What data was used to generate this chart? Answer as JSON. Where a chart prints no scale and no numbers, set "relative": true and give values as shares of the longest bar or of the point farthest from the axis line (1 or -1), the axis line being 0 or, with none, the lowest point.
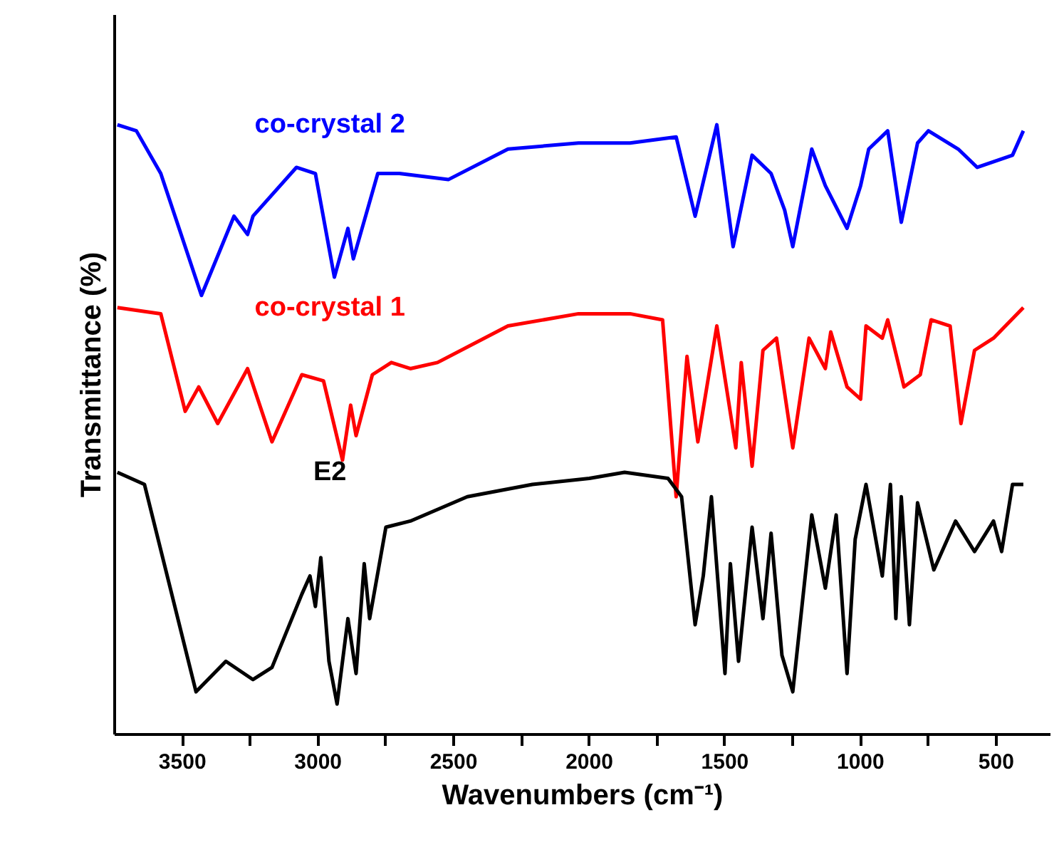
{
  "chart_data": {
    "type": "line",
    "relative": true,
    "xlabel": "Wavenumbers (cm⁻¹)",
    "ylabel": "Transmittance (%)",
    "xlim": [
      3750,
      300
    ],
    "xticks": [
      3500,
      {
        "value": 3250,
        "label": null
      },
      3000,
      {
        "value": 2750,
        "label": null
      },
      2500,
      {
        "value": 2250,
        "label": null
      },
      2000,
      {
        "value": 1750,
        "label": null
      },
      1500,
      {
        "value": 1250,
        "label": null
      },
      1000,
      {
        "value": 750,
        "label": null
      },
      500
    ],
    "grid": false,
    "marker": "none",
    "line_style": "solid",
    "tick_labels": "x",
    "series": [
      {
        "name": "co-crystal 2",
        "color": "#0000ff",
        "x": [
          3740,
          3670,
          3580,
          3430,
          3310,
          3260,
          3240,
          3080,
          3010,
          2940,
          2890,
          2870,
          2780,
          2700,
          2520,
          2300,
          2040,
          1850,
          1680,
          1610,
          1530,
          1470,
          1400,
          1330,
          1280,
          1250,
          1180,
          1130,
          1050,
          1000,
          970,
          900,
          850,
          790,
          750,
          640,
          570,
          440,
          400
        ],
        "values": [
          1.0,
          0.99,
          0.92,
          0.72,
          0.85,
          0.82,
          0.85,
          0.93,
          0.92,
          0.75,
          0.83,
          0.78,
          0.92,
          0.92,
          0.91,
          0.96,
          0.97,
          0.97,
          0.98,
          0.85,
          1.0,
          0.8,
          0.95,
          0.92,
          0.86,
          0.8,
          0.96,
          0.9,
          0.83,
          0.9,
          0.96,
          0.99,
          0.84,
          0.97,
          0.99,
          0.96,
          0.93,
          0.95,
          0.99
        ]
      },
      {
        "name": "co-crystal 1",
        "color": "#ff0000",
        "x": [
          3740,
          3580,
          3490,
          3440,
          3370,
          3260,
          3170,
          3060,
          2980,
          2910,
          2880,
          2860,
          2800,
          2730,
          2660,
          2560,
          2300,
          2040,
          1850,
          1730,
          1680,
          1640,
          1600,
          1530,
          1460,
          1440,
          1400,
          1360,
          1310,
          1250,
          1190,
          1130,
          1110,
          1050,
          1000,
          980,
          920,
          900,
          840,
          780,
          740,
          670,
          630,
          580,
          510,
          400
        ],
        "values": [
          0.7,
          0.69,
          0.53,
          0.57,
          0.51,
          0.6,
          0.48,
          0.59,
          0.58,
          0.45,
          0.54,
          0.49,
          0.59,
          0.61,
          0.6,
          0.61,
          0.67,
          0.69,
          0.69,
          0.68,
          0.39,
          0.62,
          0.48,
          0.67,
          0.47,
          0.61,
          0.44,
          0.63,
          0.65,
          0.47,
          0.65,
          0.6,
          0.66,
          0.57,
          0.55,
          0.67,
          0.65,
          0.68,
          0.57,
          0.59,
          0.68,
          0.67,
          0.51,
          0.63,
          0.65,
          0.7
        ]
      },
      {
        "name": "E2",
        "color": "#000000",
        "x": [
          3740,
          3640,
          3450,
          3340,
          3240,
          3170,
          3060,
          3030,
          3010,
          2990,
          2960,
          2930,
          2890,
          2860,
          2830,
          2810,
          2750,
          2660,
          2450,
          2210,
          2000,
          1870,
          1710,
          1660,
          1610,
          1580,
          1550,
          1500,
          1480,
          1450,
          1400,
          1360,
          1330,
          1290,
          1250,
          1180,
          1130,
          1090,
          1050,
          1020,
          980,
          920,
          890,
          870,
          850,
          820,
          790,
          730,
          650,
          580,
          510,
          480,
          440,
          400
        ],
        "values": [
          0.43,
          0.41,
          0.07,
          0.12,
          0.09,
          0.11,
          0.23,
          0.26,
          0.21,
          0.29,
          0.12,
          0.05,
          0.19,
          0.1,
          0.28,
          0.19,
          0.34,
          0.35,
          0.39,
          0.41,
          0.42,
          0.43,
          0.42,
          0.39,
          0.18,
          0.26,
          0.39,
          0.1,
          0.28,
          0.12,
          0.34,
          0.19,
          0.33,
          0.13,
          0.07,
          0.36,
          0.24,
          0.36,
          0.1,
          0.32,
          0.41,
          0.26,
          0.41,
          0.19,
          0.39,
          0.18,
          0.38,
          0.27,
          0.35,
          0.3,
          0.35,
          0.3,
          0.41,
          0.41
        ]
      }
    ]
  }
}
